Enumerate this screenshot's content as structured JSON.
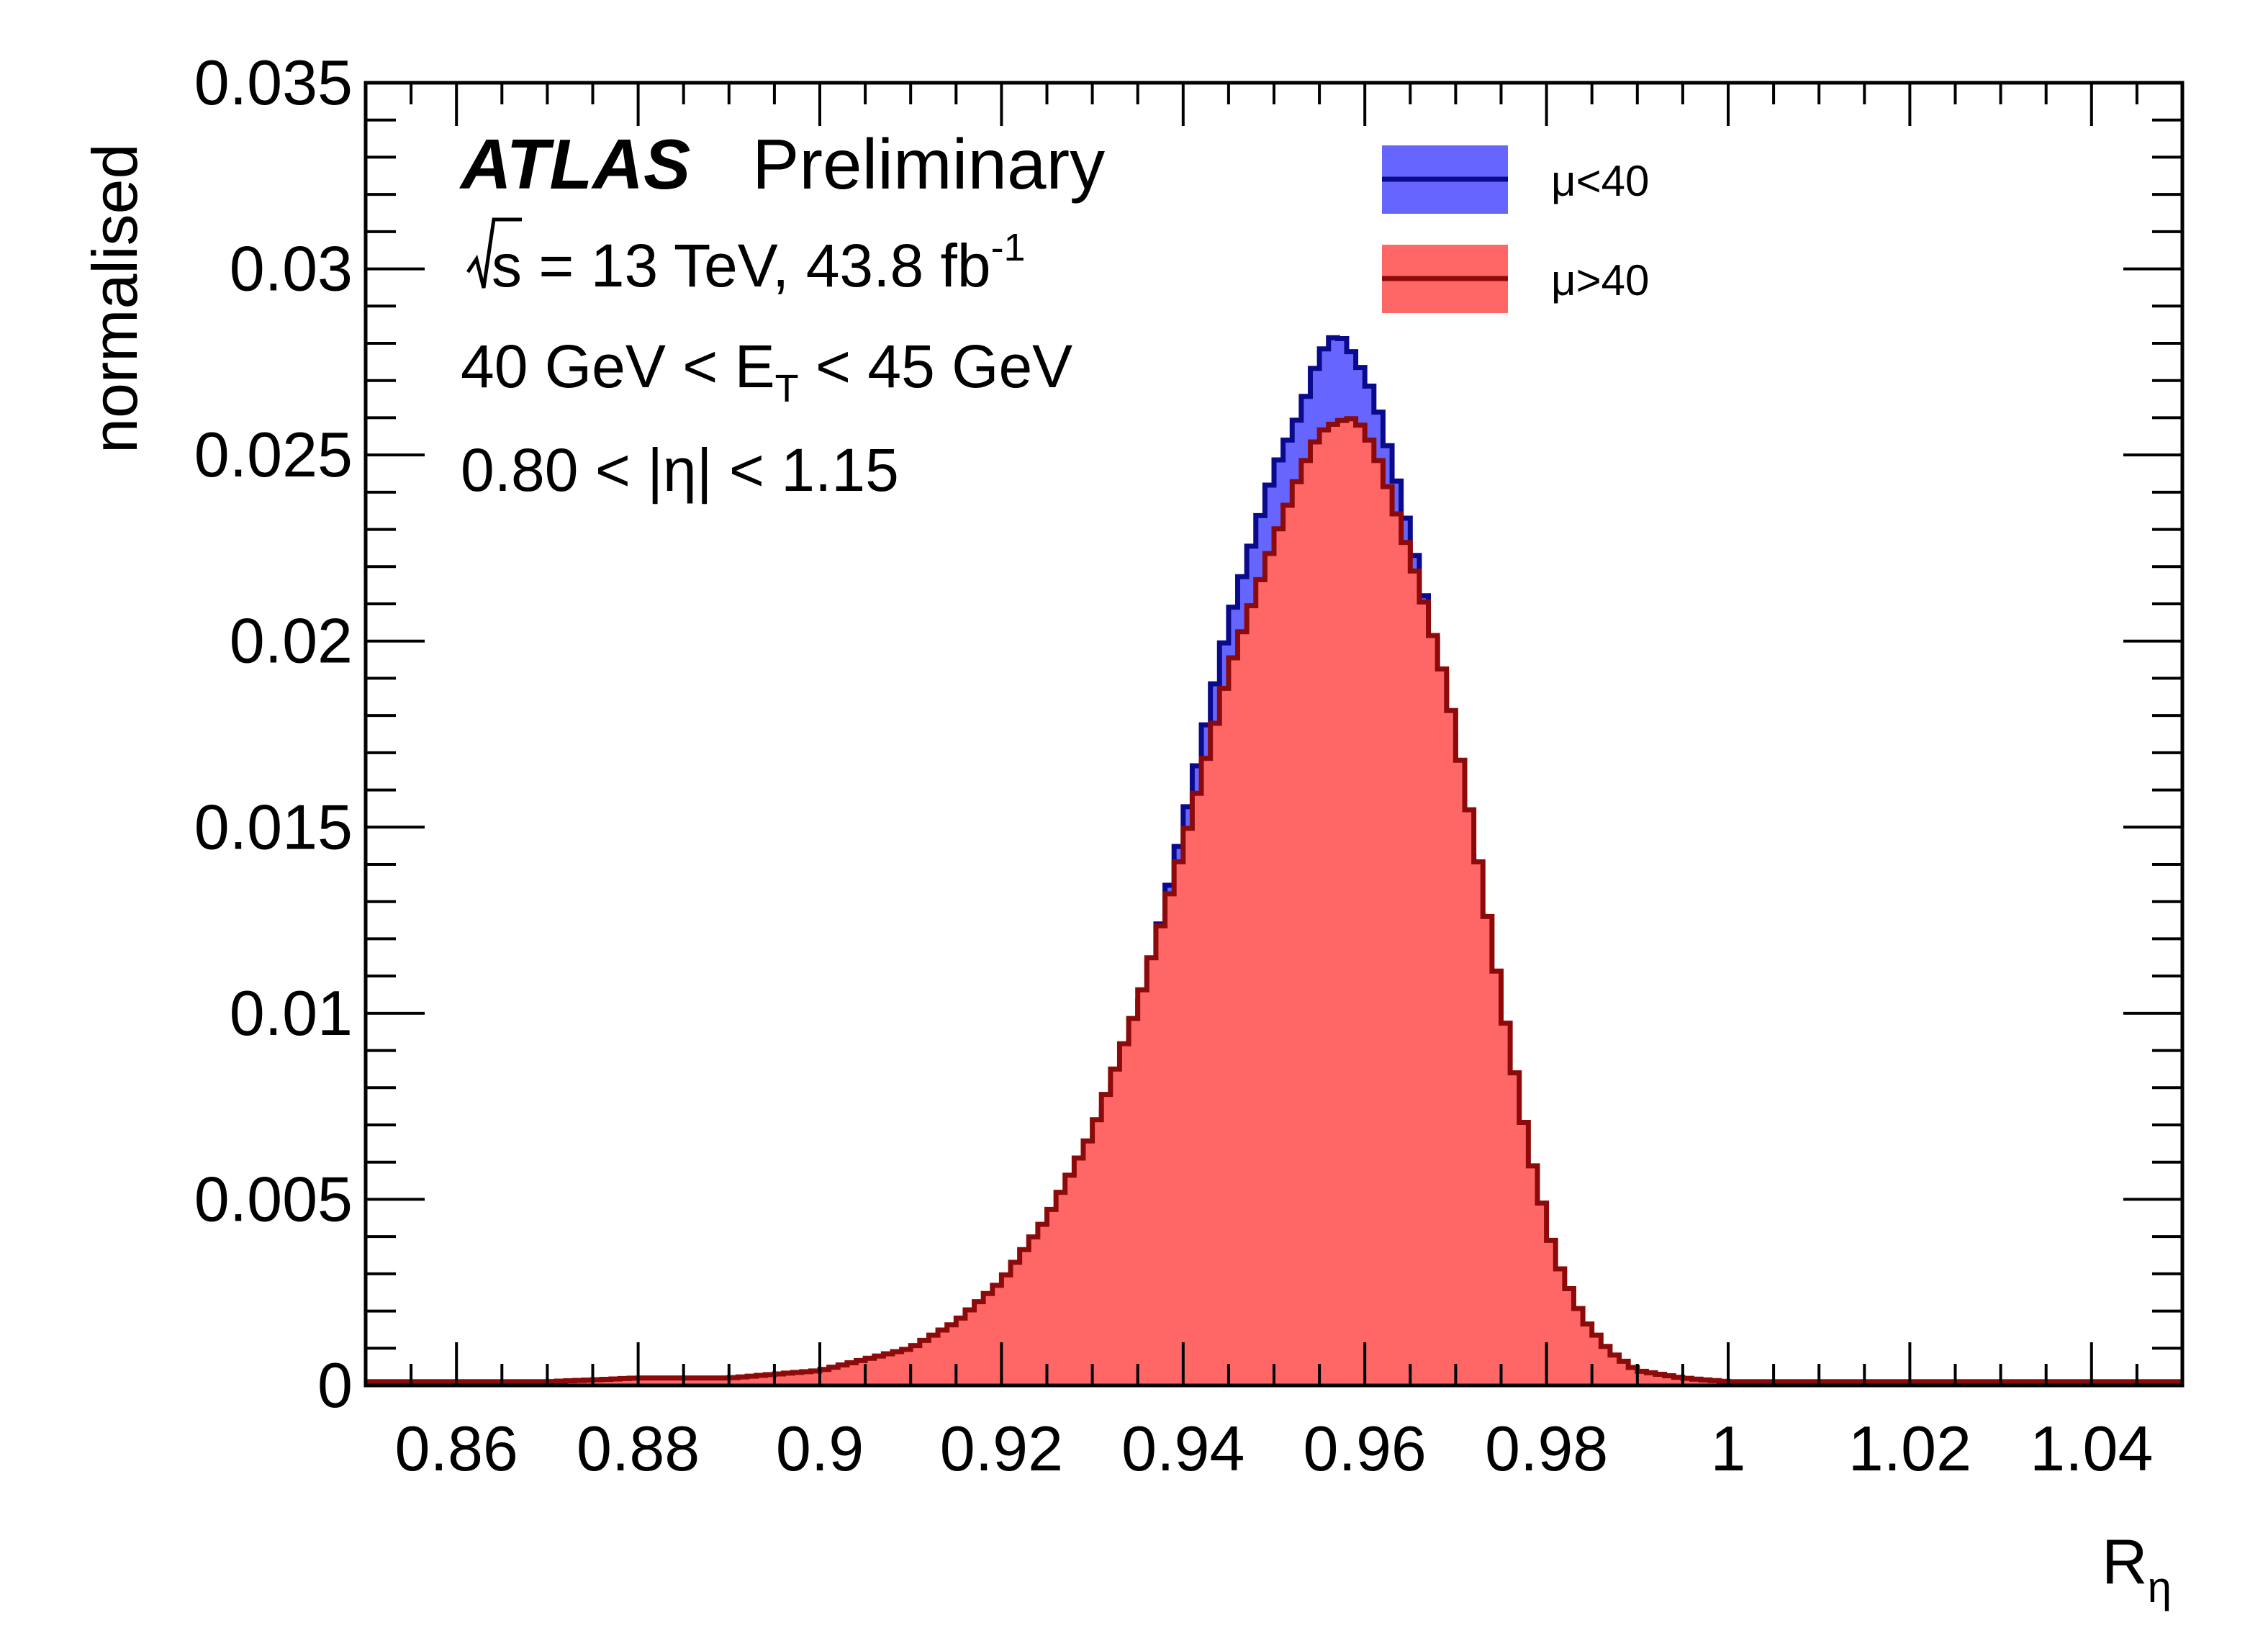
{
  "chart_data": {
    "type": "area",
    "xlabel": "R",
    "xlabel_sub": "η",
    "ylabel": "normalised",
    "xlim": [
      0.85,
      1.05
    ],
    "ylim": [
      0,
      0.035
    ],
    "xticks": [
      "0.86",
      "0.88",
      "0.9",
      "0.92",
      "0.94",
      "0.96",
      "0.98",
      "1",
      "1.02",
      "1.04"
    ],
    "xtick_values": [
      0.86,
      0.88,
      0.9,
      0.92,
      0.94,
      0.96,
      0.98,
      1.0,
      1.02,
      1.04
    ],
    "yticks": [
      "0",
      "0.005",
      "0.01",
      "0.015",
      "0.02",
      "0.025",
      "0.03",
      "0.035"
    ],
    "ytick_values": [
      0,
      0.005,
      0.01,
      0.015,
      0.02,
      0.025,
      0.03,
      0.035
    ],
    "grid": false,
    "legend_position": "top-right",
    "annotations": {
      "atlas": "ATLAS",
      "preliminary": "Preliminary",
      "lumi_prefix": "s = 13 TeV, 43.8 fb",
      "lumi_sup": "-1",
      "et_prefix": "40 GeV < E",
      "et_sub": "T",
      "et_suffix": " < 45 GeV",
      "eta": "0.80 < |η| < 1.15"
    },
    "series": [
      {
        "name": "μ<40",
        "fill": "#6666ff",
        "line": "#0a0a8c",
        "x": [
          0.86,
          0.87,
          0.88,
          0.89,
          0.9,
          0.905,
          0.91,
          0.915,
          0.92,
          0.925,
          0.93,
          0.935,
          0.94,
          0.945,
          0.95,
          0.953,
          0.955,
          0.957,
          0.959,
          0.961,
          0.963,
          0.966,
          0.969,
          0.972,
          0.975,
          0.978,
          0.981,
          0.984,
          0.987,
          0.99,
          0.995,
          1.0,
          1.01,
          1.02,
          1.03,
          1.04,
          1.05
        ],
        "y": [
          0.0001,
          0.0001,
          0.0001,
          0.0002,
          0.0003,
          0.0005,
          0.0008,
          0.0014,
          0.0024,
          0.0038,
          0.0063,
          0.0098,
          0.015,
          0.0205,
          0.0246,
          0.0262,
          0.0277,
          0.0283,
          0.0276,
          0.0266,
          0.0248,
          0.0218,
          0.0183,
          0.0134,
          0.0088,
          0.0048,
          0.0023,
          0.0011,
          0.0005,
          0.0003,
          0.0001,
          0.0001,
          0.0001,
          0.0001,
          0.0001,
          0.0001,
          0.0001
        ]
      },
      {
        "name": "μ>40",
        "fill": "#ff6666",
        "line": "#8c0a0a",
        "x": [
          0.86,
          0.87,
          0.88,
          0.89,
          0.9,
          0.905,
          0.91,
          0.915,
          0.92,
          0.925,
          0.93,
          0.935,
          0.94,
          0.945,
          0.95,
          0.953,
          0.955,
          0.957,
          0.959,
          0.961,
          0.963,
          0.966,
          0.969,
          0.972,
          0.975,
          0.978,
          0.981,
          0.984,
          0.987,
          0.99,
          0.995,
          1.0,
          1.01,
          1.02,
          1.03,
          1.04,
          1.05
        ],
        "y": [
          0.0001,
          0.0001,
          0.0002,
          0.0002,
          0.0004,
          0.0007,
          0.001,
          0.0017,
          0.0028,
          0.0045,
          0.0068,
          0.0102,
          0.0145,
          0.0192,
          0.0227,
          0.0246,
          0.0256,
          0.0259,
          0.026,
          0.0252,
          0.0238,
          0.0215,
          0.0188,
          0.0148,
          0.0104,
          0.0064,
          0.0034,
          0.0018,
          0.0009,
          0.0004,
          0.0002,
          0.0001,
          0.0001,
          0.0001,
          0.0001,
          0.0001,
          0.0001
        ]
      }
    ]
  }
}
